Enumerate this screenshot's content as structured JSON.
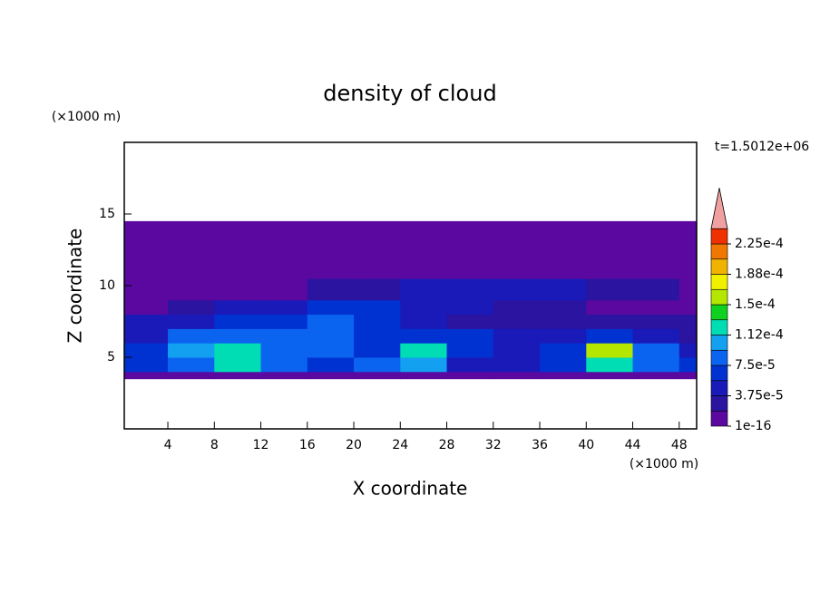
{
  "chart_data": {
    "type": "contour",
    "title": "density of cloud",
    "y_unit": "(×1000 m)",
    "x_unit": "(×1000 m)",
    "time_label": "t=1.5012e+06",
    "x_label": "X coordinate",
    "y_label": "Z coordinate",
    "xlim": [
      0.25,
      49.5
    ],
    "ylim": [
      0,
      20
    ],
    "xticks": [
      4,
      8,
      12,
      16,
      20,
      24,
      28,
      32,
      36,
      40,
      44,
      48
    ],
    "yticks": [
      5,
      10,
      15
    ],
    "x_edges": [
      0.25,
      4,
      8,
      12,
      16,
      20,
      24,
      28,
      32,
      36,
      40,
      44,
      48,
      49.5
    ],
    "y_edges": [
      3.5,
      4,
      5,
      6,
      7,
      8,
      9,
      10.5,
      12,
      14.5
    ],
    "z": [
      [
        1e-05,
        1e-05,
        1e-05,
        1e-05,
        1e-05,
        1e-05,
        1e-05,
        1e-05,
        1e-05,
        1e-05,
        1e-05,
        1e-05,
        1e-05
      ],
      [
        6e-05,
        9e-05,
        0.00012,
        8e-05,
        7e-05,
        9e-05,
        0.0001,
        5e-05,
        4e-05,
        7e-05,
        0.00012,
        8e-05,
        6e-05
      ],
      [
        7e-05,
        0.0001,
        0.00013,
        9e-05,
        8e-05,
        7e-05,
        0.00012,
        6e-05,
        5e-05,
        6e-05,
        0.00015,
        9e-05,
        4e-05
      ],
      [
        4e-05,
        8e-05,
        9e-05,
        8e-05,
        8e-05,
        7e-05,
        6e-05,
        7e-05,
        4e-05,
        4e-05,
        7e-05,
        5e-05,
        3e-05
      ],
      [
        4e-05,
        5e-05,
        6e-05,
        7e-05,
        8e-05,
        6e-05,
        4e-05,
        3e-05,
        3e-05,
        3e-05,
        3e-05,
        3e-05,
        2e-05
      ],
      [
        1e-05,
        3e-05,
        4e-05,
        5e-05,
        6e-05,
        6e-05,
        5e-05,
        5e-05,
        3e-05,
        2e-05,
        1e-05,
        1e-05,
        1e-05
      ],
      [
        1e-05,
        1e-05,
        1e-05,
        1e-05,
        2e-05,
        3e-05,
        4e-05,
        5e-05,
        4e-05,
        4e-05,
        3e-05,
        2e-05,
        1e-05
      ],
      [
        1e-05,
        1e-05,
        1e-05,
        1e-05,
        1e-05,
        1e-05,
        1e-05,
        1e-05,
        1e-05,
        1e-05,
        1e-05,
        1e-05,
        1e-05
      ],
      [
        1e-05,
        1e-05,
        1e-05,
        1e-05,
        1e-05,
        1e-05,
        1e-05,
        1e-05,
        1e-05,
        1e-05,
        1e-05,
        1e-05,
        1e-05
      ]
    ],
    "colorbar": {
      "bounds": [
        1e-16,
        1.875e-05,
        3.75e-05,
        5.625e-05,
        7.5e-05,
        9.375e-05,
        0.0001125,
        0.00013125,
        0.00015,
        0.00016875,
        0.0001875,
        0.00020625,
        0.000225,
        0.00024375
      ],
      "colors": [
        "#5a08a0",
        "#2a14a0",
        "#1a1ab8",
        "#0032d2",
        "#0a64f0",
        "#14a0f0",
        "#00dcb4",
        "#10d020",
        "#b4e600",
        "#f0f000",
        "#f0b400",
        "#f07800",
        "#f03000"
      ],
      "extend_color": "#f0a0a0",
      "ticks": [
        1e-16,
        {
          "value": 3.75e-05,
          "label": "3.75e-5"
        },
        {
          "value": 7.5e-05,
          "label": "7.5e-5"
        },
        {
          "value": 0.0001125,
          "label": "1.12e-4"
        },
        {
          "value": 0.00015,
          "label": "1.5e-4"
        },
        {
          "value": 0.0001875,
          "label": "1.88e-4"
        },
        {
          "value": 0.000225,
          "label": "2.25e-4"
        }
      ]
    }
  }
}
